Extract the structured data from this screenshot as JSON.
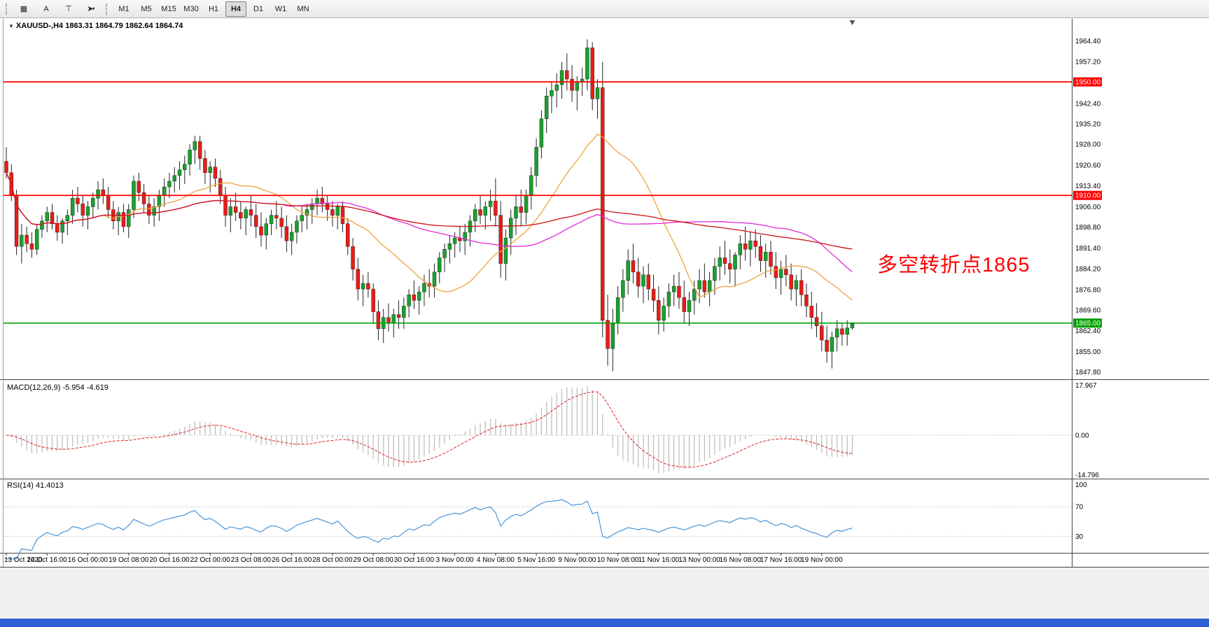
{
  "toolbar": {
    "tools": [
      {
        "name": "templates-tool",
        "glyph": "▦"
      },
      {
        "name": "text-annotation-tool",
        "glyph": "A"
      },
      {
        "name": "shapes-tool",
        "glyph": "⊤"
      },
      {
        "name": "cursor-tool",
        "glyph": "➤",
        "caret": "▾"
      }
    ],
    "timeframes": [
      "M1",
      "M5",
      "M15",
      "M30",
      "H1",
      "H4",
      "D1",
      "W1",
      "MN"
    ],
    "active_timeframe": "H4"
  },
  "chart": {
    "collapse_icon": "▼",
    "title": "XAUUSD-,H4 1863.31 1864.79 1862.64 1864.74",
    "annotation": {
      "text": "多空转折点1865",
      "color": "#ff0000"
    },
    "price_axis_labels": [
      "1964.40",
      "1957.20",
      "1942.40",
      "1935.20",
      "1928.00",
      "1920.60",
      "1913.40",
      "1906.00",
      "1898.80",
      "1891.40",
      "1884.20",
      "1876.80",
      "1869.60",
      "1862.40",
      "1855.00",
      "1847.80"
    ],
    "hlines": [
      {
        "value": 1950.0,
        "label": "1950.00",
        "color": "#ff0000"
      },
      {
        "value": 1910.0,
        "label": "1910.00",
        "color": "#ff0000"
      },
      {
        "value": 1865.0,
        "label": "1865.00",
        "color": "#00a000"
      }
    ]
  },
  "macd": {
    "label": "MACD(12,26,9) -5.954 -4.619",
    "axis_labels": [
      "17.967",
      "0.00",
      "-14.796"
    ]
  },
  "rsi": {
    "label": "RSI(14) 41.4013",
    "levels": [
      70,
      30
    ],
    "axis_labels": [
      "100",
      "70",
      "30"
    ]
  },
  "time_axis": [
    "13 Oct 2020",
    "14 Oct 16:00",
    "16 Oct 00:00",
    "19 Oct 08:00",
    "20 Oct 16:00",
    "22 Oct 00:00",
    "23 Oct 08:00",
    "26 Oct 16:00",
    "28 Oct 00:00",
    "29 Oct 08:00",
    "30 Oct 16:00",
    "3 Nov 00:00",
    "4 Nov 08:00",
    "5 Nov 16:00",
    "9 Nov 00:00",
    "10 Nov 08:00",
    "11 Nov 16:00",
    "13 Nov 00:00",
    "16 Nov 08:00",
    "17 Nov 16:00",
    "19 Nov 00:00"
  ],
  "colors": {
    "bull": "#19a12e",
    "bear": "#ea1c16",
    "wick": "#222222",
    "ma_fast": "#eea33c",
    "ma_mid": "#e02ad8",
    "ma_slow": "#cc1111",
    "hist": "#bbbbbb",
    "macd_signal": "#dd2222",
    "rsi_line": "#4a94d8",
    "level_dash": "#c8c8c8",
    "badge_text": "#ffffff"
  },
  "chart_data": {
    "type": "candlestick",
    "symbol": "XAUUSD-",
    "timeframe": "H4",
    "ohlc_current": {
      "open": 1863.31,
      "high": 1864.79,
      "low": 1862.64,
      "close": 1864.74
    },
    "ylim": [
      1845.2,
      1972.2
    ],
    "x_labels_every": 8,
    "overlays": [
      {
        "name": "ma-fast-orange",
        "period": 20,
        "color_key": "ma_fast"
      },
      {
        "name": "ma-mid-magenta",
        "period": 55,
        "color_key": "ma_mid"
      },
      {
        "name": "ma-slow-red",
        "period": 110,
        "color_key": "ma_slow"
      }
    ],
    "indicators": [
      {
        "type": "MACD",
        "params": [
          12,
          26,
          9
        ],
        "display": "-5.954 -4.619"
      },
      {
        "type": "RSI",
        "params": [
          14
        ],
        "display": "41.4013"
      }
    ],
    "candles": [
      [
        1922,
        1927,
        1916,
        1918
      ],
      [
        1918,
        1921,
        1908,
        1910
      ],
      [
        1910,
        1912,
        1889,
        1892
      ],
      [
        1892,
        1900,
        1886,
        1896
      ],
      [
        1896,
        1899,
        1890,
        1893
      ],
      [
        1893,
        1897,
        1888,
        1891
      ],
      [
        1891,
        1900,
        1889,
        1898
      ],
      [
        1898,
        1903,
        1895,
        1901
      ],
      [
        1901,
        1906,
        1897,
        1904
      ],
      [
        1904,
        1907,
        1898,
        1900
      ],
      [
        1900,
        1903,
        1894,
        1897
      ],
      [
        1897,
        1902,
        1893,
        1901
      ],
      [
        1901,
        1905,
        1896,
        1903
      ],
      [
        1903,
        1912,
        1900,
        1909
      ],
      [
        1909,
        1913,
        1904,
        1907
      ],
      [
        1907,
        1910,
        1899,
        1903
      ],
      [
        1903,
        1908,
        1898,
        1906
      ],
      [
        1906,
        1911,
        1902,
        1909
      ],
      [
        1909,
        1915,
        1905,
        1912
      ],
      [
        1912,
        1916,
        1907,
        1910
      ],
      [
        1910,
        1913,
        1902,
        1905
      ],
      [
        1905,
        1908,
        1898,
        1901
      ],
      [
        1901,
        1906,
        1896,
        1904
      ],
      [
        1904,
        1907,
        1897,
        1899
      ],
      [
        1899,
        1907,
        1895,
        1905
      ],
      [
        1905,
        1917,
        1902,
        1915
      ],
      [
        1915,
        1918,
        1908,
        1911
      ],
      [
        1911,
        1914,
        1904,
        1907
      ],
      [
        1907,
        1910,
        1900,
        1903
      ],
      [
        1903,
        1909,
        1899,
        1906
      ],
      [
        1906,
        1912,
        1901,
        1910
      ],
      [
        1910,
        1916,
        1906,
        1913
      ],
      [
        1913,
        1918,
        1909,
        1915
      ],
      [
        1915,
        1920,
        1911,
        1917
      ],
      [
        1917,
        1922,
        1912,
        1919
      ],
      [
        1919,
        1924,
        1914,
        1921
      ],
      [
        1921,
        1928,
        1917,
        1926
      ],
      [
        1926,
        1931,
        1921,
        1929
      ],
      [
        1929,
        1931,
        1919,
        1923
      ],
      [
        1923,
        1926,
        1914,
        1918
      ],
      [
        1918,
        1922,
        1911,
        1920
      ],
      [
        1920,
        1923,
        1913,
        1916
      ],
      [
        1916,
        1919,
        1907,
        1910
      ],
      [
        1910,
        1913,
        1899,
        1903
      ],
      [
        1903,
        1909,
        1897,
        1906
      ],
      [
        1906,
        1911,
        1901,
        1904
      ],
      [
        1904,
        1908,
        1898,
        1902
      ],
      [
        1902,
        1906,
        1896,
        1905
      ],
      [
        1905,
        1910,
        1899,
        1903
      ],
      [
        1903,
        1907,
        1895,
        1899
      ],
      [
        1899,
        1904,
        1892,
        1896
      ],
      [
        1896,
        1902,
        1891,
        1900
      ],
      [
        1900,
        1905,
        1896,
        1903
      ],
      [
        1903,
        1908,
        1898,
        1902
      ],
      [
        1902,
        1906,
        1895,
        1899
      ],
      [
        1899,
        1903,
        1890,
        1894
      ],
      [
        1894,
        1900,
        1889,
        1897
      ],
      [
        1897,
        1903,
        1893,
        1901
      ],
      [
        1901,
        1906,
        1897,
        1903
      ],
      [
        1903,
        1907,
        1898,
        1905
      ],
      [
        1905,
        1909,
        1900,
        1907
      ],
      [
        1907,
        1912,
        1903,
        1909
      ],
      [
        1909,
        1913,
        1904,
        1907
      ],
      [
        1907,
        1910,
        1901,
        1905
      ],
      [
        1905,
        1908,
        1899,
        1903
      ],
      [
        1903,
        1907,
        1898,
        1906
      ],
      [
        1906,
        1908,
        1897,
        1900
      ],
      [
        1900,
        1902,
        1889,
        1892
      ],
      [
        1892,
        1895,
        1880,
        1884
      ],
      [
        1884,
        1888,
        1873,
        1877
      ],
      [
        1877,
        1882,
        1871,
        1879
      ],
      [
        1879,
        1883,
        1874,
        1877
      ],
      [
        1877,
        1879,
        1865,
        1869
      ],
      [
        1869,
        1873,
        1859,
        1863
      ],
      [
        1863,
        1870,
        1858,
        1867
      ],
      [
        1867,
        1872,
        1862,
        1865
      ],
      [
        1865,
        1870,
        1860,
        1868
      ],
      [
        1868,
        1873,
        1863,
        1867
      ],
      [
        1867,
        1874,
        1863,
        1871
      ],
      [
        1871,
        1877,
        1867,
        1875
      ],
      [
        1875,
        1880,
        1870,
        1873
      ],
      [
        1873,
        1878,
        1868,
        1876
      ],
      [
        1876,
        1882,
        1871,
        1879
      ],
      [
        1879,
        1884,
        1874,
        1878
      ],
      [
        1878,
        1886,
        1874,
        1883
      ],
      [
        1883,
        1890,
        1879,
        1888
      ],
      [
        1888,
        1893,
        1883,
        1891
      ],
      [
        1891,
        1896,
        1886,
        1893
      ],
      [
        1893,
        1897,
        1888,
        1895
      ],
      [
        1895,
        1899,
        1890,
        1894
      ],
      [
        1894,
        1900,
        1889,
        1897
      ],
      [
        1897,
        1903,
        1892,
        1901
      ],
      [
        1901,
        1907,
        1897,
        1905
      ],
      [
        1905,
        1910,
        1900,
        1903
      ],
      [
        1903,
        1908,
        1898,
        1906
      ],
      [
        1906,
        1912,
        1901,
        1908
      ],
      [
        1908,
        1916,
        1899,
        1903
      ],
      [
        1903,
        1908,
        1881,
        1886
      ],
      [
        1886,
        1898,
        1880,
        1895
      ],
      [
        1895,
        1905,
        1889,
        1902
      ],
      [
        1902,
        1910,
        1896,
        1906
      ],
      [
        1906,
        1912,
        1899,
        1904
      ],
      [
        1904,
        1912,
        1900,
        1910
      ],
      [
        1910,
        1920,
        1905,
        1917
      ],
      [
        1917,
        1930,
        1913,
        1927
      ],
      [
        1927,
        1940,
        1923,
        1937
      ],
      [
        1937,
        1948,
        1932,
        1945
      ],
      [
        1945,
        1950,
        1939,
        1947
      ],
      [
        1947,
        1953,
        1941,
        1949
      ],
      [
        1949,
        1957,
        1944,
        1954
      ],
      [
        1954,
        1960,
        1947,
        1951
      ],
      [
        1951,
        1956,
        1943,
        1947
      ],
      [
        1947,
        1952,
        1940,
        1950
      ],
      [
        1950,
        1955,
        1945,
        1951
      ],
      [
        1951,
        1965,
        1947,
        1962
      ],
      [
        1962,
        1964,
        1940,
        1944
      ],
      [
        1944,
        1951,
        1937,
        1948
      ],
      [
        1948,
        1957,
        1860,
        1866
      ],
      [
        1866,
        1875,
        1850,
        1856
      ],
      [
        1856,
        1870,
        1848,
        1865
      ],
      [
        1865,
        1878,
        1861,
        1874
      ],
      [
        1874,
        1884,
        1869,
        1880
      ],
      [
        1880,
        1891,
        1875,
        1887
      ],
      [
        1887,
        1893,
        1879,
        1883
      ],
      [
        1883,
        1888,
        1874,
        1878
      ],
      [
        1878,
        1885,
        1872,
        1882
      ],
      [
        1882,
        1886,
        1873,
        1877
      ],
      [
        1877,
        1882,
        1869,
        1873
      ],
      [
        1873,
        1878,
        1861,
        1866
      ],
      [
        1866,
        1874,
        1862,
        1871
      ],
      [
        1871,
        1879,
        1867,
        1876
      ],
      [
        1876,
        1882,
        1871,
        1878
      ],
      [
        1878,
        1883,
        1870,
        1874
      ],
      [
        1874,
        1880,
        1865,
        1869
      ],
      [
        1869,
        1876,
        1864,
        1873
      ],
      [
        1873,
        1880,
        1868,
        1877
      ],
      [
        1877,
        1884,
        1872,
        1880
      ],
      [
        1880,
        1886,
        1874,
        1876
      ],
      [
        1876,
        1883,
        1871,
        1880
      ],
      [
        1880,
        1888,
        1875,
        1885
      ],
      [
        1885,
        1892,
        1880,
        1888
      ],
      [
        1888,
        1894,
        1882,
        1886
      ],
      [
        1886,
        1891,
        1879,
        1884
      ],
      [
        1884,
        1890,
        1878,
        1889
      ],
      [
        1889,
        1896,
        1884,
        1893
      ],
      [
        1893,
        1899,
        1887,
        1891
      ],
      [
        1891,
        1897,
        1885,
        1894
      ],
      [
        1894,
        1898,
        1888,
        1892
      ],
      [
        1892,
        1896,
        1883,
        1887
      ],
      [
        1887,
        1893,
        1881,
        1890
      ],
      [
        1890,
        1894,
        1882,
        1885
      ],
      [
        1885,
        1890,
        1877,
        1881
      ],
      [
        1881,
        1887,
        1875,
        1884
      ],
      [
        1884,
        1889,
        1878,
        1882
      ],
      [
        1882,
        1886,
        1873,
        1877
      ],
      [
        1877,
        1882,
        1871,
        1880
      ],
      [
        1880,
        1884,
        1871,
        1875
      ],
      [
        1875,
        1879,
        1867,
        1871
      ],
      [
        1871,
        1876,
        1863,
        1867
      ],
      [
        1867,
        1872,
        1860,
        1864
      ],
      [
        1864,
        1869,
        1855,
        1859
      ],
      [
        1859,
        1864,
        1851,
        1855
      ],
      [
        1855,
        1862,
        1849,
        1860
      ],
      [
        1860,
        1866,
        1855,
        1863
      ],
      [
        1863,
        1865,
        1857,
        1861
      ],
      [
        1861,
        1866,
        1857,
        1863.31
      ],
      [
        1863.31,
        1864.79,
        1862.64,
        1864.74
      ]
    ]
  }
}
